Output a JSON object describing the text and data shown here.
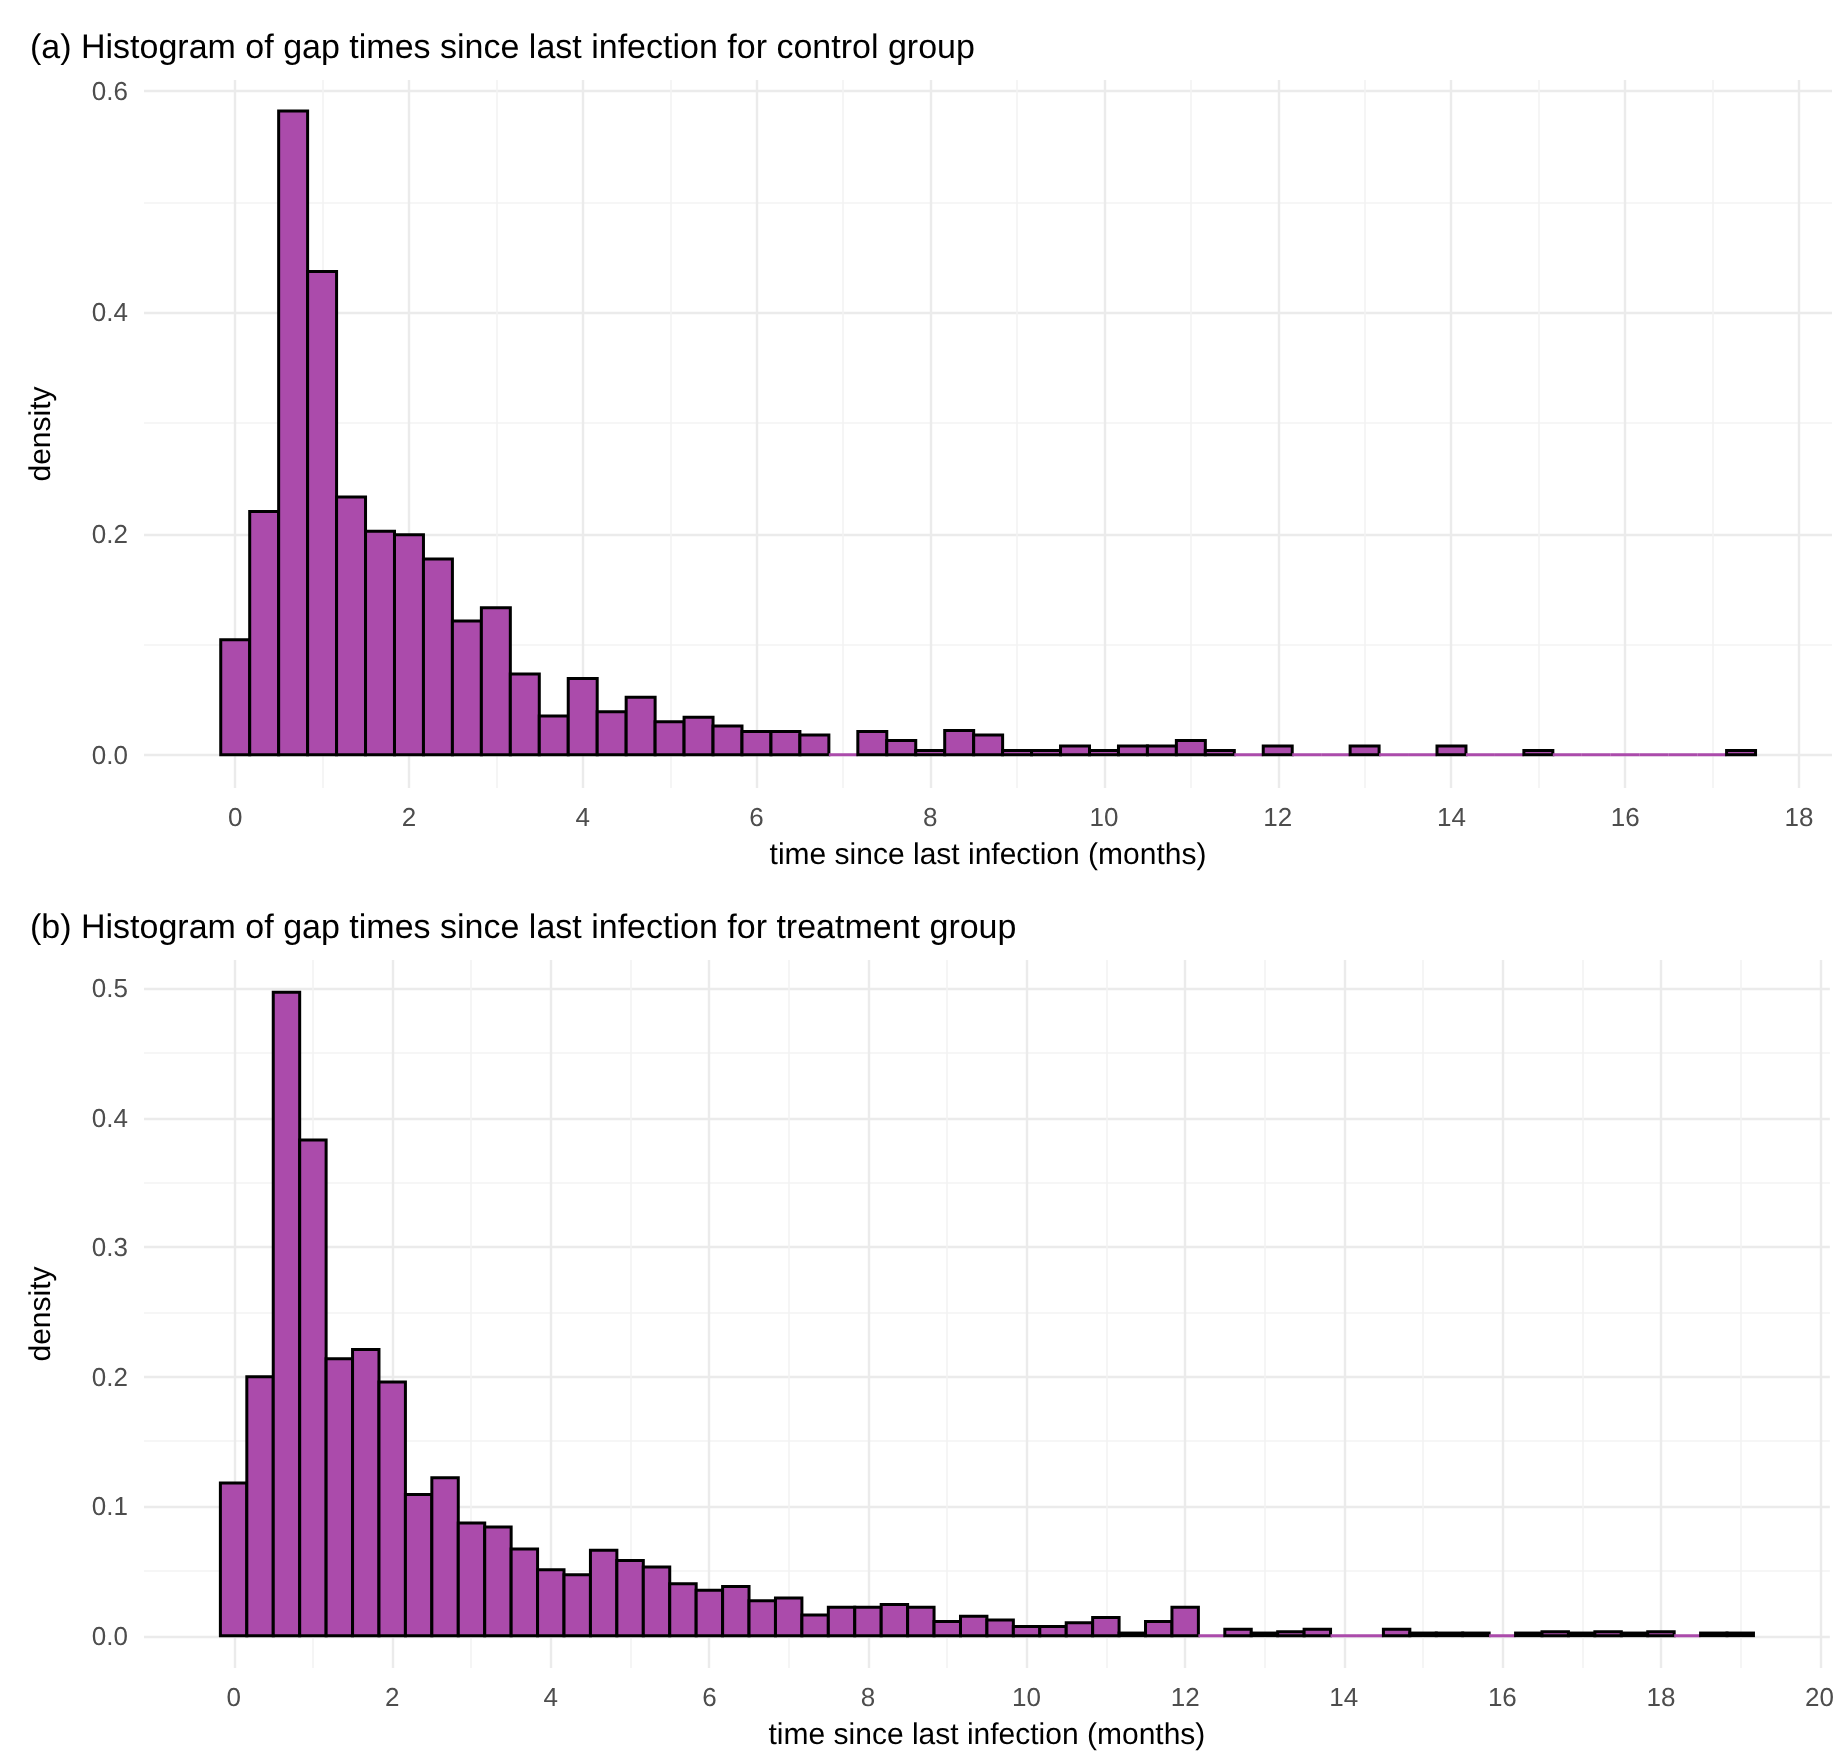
{
  "chart_data": [
    {
      "type": "histogram",
      "title": "(a) Histogram of gap times since last infection for control group",
      "xlabel": "time since last infection (months)",
      "ylabel": "density",
      "color": "#ab4bab",
      "bins": [
        -0.1667,
        0.1667,
        0.5,
        0.8333,
        1.1667,
        1.5,
        1.8333,
        2.1667,
        2.5,
        2.8333,
        3.1667,
        3.5,
        3.8333,
        4.1667,
        4.5,
        4.8333,
        5.1667,
        5.5,
        5.8333,
        6.1667,
        6.5,
        6.8333,
        7.1667,
        7.5,
        7.8333,
        8.1667,
        8.5,
        8.8333,
        9.1667,
        9.5,
        9.8333,
        10.1667,
        10.5,
        10.8333,
        11.1667,
        11.5,
        11.8333,
        12.1667,
        12.5,
        12.8333,
        13.1667,
        13.5,
        13.8333,
        14.1667,
        14.5,
        14.8333,
        15.1667,
        15.5,
        15.8333,
        16.1667,
        16.5,
        16.8333,
        17.1667,
        17.5
      ],
      "values": [
        0.104,
        0.22,
        0.582,
        0.437,
        0.233,
        0.202,
        0.199,
        0.177,
        0.121,
        0.133,
        0.073,
        0.035,
        0.069,
        0.039,
        0.052,
        0.03,
        0.034,
        0.026,
        0.021,
        0.021,
        0.018,
        0,
        0.021,
        0.013,
        0.004,
        0.022,
        0.018,
        0.004,
        0.004,
        0.008,
        0.004,
        0.008,
        0.008,
        0.013,
        0.004,
        0,
        0.008,
        0,
        0,
        0.008,
        0,
        0,
        0.008,
        0,
        0,
        0.004,
        0,
        0,
        0,
        0,
        0,
        0,
        0.004
      ],
      "xlim": [
        -1.05,
        18.38
      ],
      "xticks": [
        0,
        2,
        4,
        6,
        8,
        10,
        12,
        14,
        16,
        18
      ],
      "ylim": [
        -0.03,
        0.61
      ],
      "yticks": [
        {
          "value": 0,
          "label": "0.0"
        },
        {
          "value": 0.2,
          "label": "0.2"
        },
        {
          "value": 0.4,
          "label": "0.4"
        },
        {
          "value": 0.6,
          "label": "0.6"
        }
      ],
      "grid": true
    },
    {
      "type": "histogram",
      "title": "(b) Histogram of gap times since last infection for treatment group",
      "xlabel": "time since last infection (months)",
      "ylabel": "density",
      "color": "#ab4bab",
      "bins": [
        -0.1667,
        0.1667,
        0.5,
        0.8333,
        1.1667,
        1.5,
        1.8333,
        2.1667,
        2.5,
        2.8333,
        3.1667,
        3.5,
        3.8333,
        4.1667,
        4.5,
        4.8333,
        5.1667,
        5.5,
        5.8333,
        6.1667,
        6.5,
        6.8333,
        7.1667,
        7.5,
        7.8333,
        8.1667,
        8.5,
        8.8333,
        9.1667,
        9.5,
        9.8333,
        10.1667,
        10.5,
        10.8333,
        11.1667,
        11.5,
        11.8333,
        12.1667,
        12.5,
        12.8333,
        13.1667,
        13.5,
        13.8333,
        14.1667,
        14.5,
        14.8333,
        15.1667,
        15.5,
        15.8333,
        16.1667,
        16.5,
        16.8333,
        17.1667,
        17.5,
        17.8333,
        18.1667,
        18.5,
        18.8333,
        19.1667
      ],
      "values": [
        0.118,
        0.2,
        0.497,
        0.383,
        0.214,
        0.221,
        0.196,
        0.109,
        0.122,
        0.087,
        0.084,
        0.067,
        0.051,
        0.047,
        0.066,
        0.058,
        0.053,
        0.04,
        0.035,
        0.038,
        0.027,
        0.029,
        0.016,
        0.022,
        0.022,
        0.024,
        0.022,
        0.011,
        0.015,
        0.012,
        0.007,
        0.007,
        0.01,
        0.014,
        0.002,
        0.011,
        0.022,
        0,
        0.005,
        0.002,
        0.003,
        0.005,
        0,
        0,
        0.005,
        0.002,
        0.002,
        0.002,
        0,
        0.002,
        0.003,
        0.002,
        0.003,
        0.002,
        0.003,
        0,
        0.002,
        0.002
      ],
      "xlim": [
        -1.13,
        20.13
      ],
      "xticks": [
        0,
        2,
        4,
        6,
        8,
        10,
        12,
        14,
        16,
        18,
        20
      ],
      "ylim": [
        -0.025,
        0.522
      ],
      "yticks": [
        {
          "value": 0,
          "label": "0.0"
        },
        {
          "value": 0.1,
          "label": "0.1"
        },
        {
          "value": 0.2,
          "label": "0.2"
        },
        {
          "value": 0.3,
          "label": "0.3"
        },
        {
          "value": 0.4,
          "label": "0.4"
        },
        {
          "value": 0.5,
          "label": "0.5"
        }
      ],
      "grid": true
    }
  ]
}
